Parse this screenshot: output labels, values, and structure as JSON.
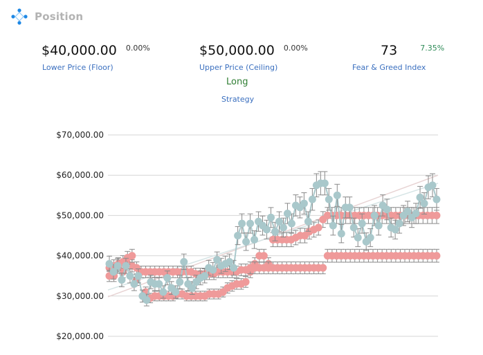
{
  "header": {
    "title": "Position",
    "logo_icon": "diamond-dots-icon"
  },
  "stats": {
    "lower": {
      "value": "$40,000.00",
      "change": "0.00%",
      "label": "Lower Price (Floor)"
    },
    "upper": {
      "value": "$50,000.00",
      "change": "0.00%",
      "label": "Upper Price (Ceiling)"
    },
    "fear_greed": {
      "value": "73",
      "change": "7.35%",
      "label": "Fear & Greed Index"
    },
    "strategy": {
      "value": "Long",
      "label": "Strategy"
    }
  },
  "colors": {
    "accent": "#3a6fbf",
    "positive": "#2e8b57",
    "price": "#a9c8cb",
    "bound": "#ef9a9a",
    "error": "#8a8a8a"
  },
  "chart_data": {
    "type": "scatter",
    "y_ticks": [
      "$70,000.00",
      "$60,000.00",
      "$50,000.00",
      "$40,000.00",
      "$30,000.00",
      "$20,000.00"
    ],
    "ylim": [
      20000,
      70000
    ],
    "grid": true,
    "series": [
      {
        "values": [
          37000,
          35000,
          37500,
          36000,
          38000,
          37500,
          34000,
          36000,
          31000,
          29500,
          30000,
          30000,
          30000,
          30000,
          30000,
          30500,
          30500,
          30000,
          30000,
          30000,
          30000,
          30000,
          30500,
          30500,
          30500,
          31000,
          32000,
          32500,
          33000,
          33000,
          33500,
          36000,
          38000,
          40000,
          40000,
          38000,
          44000,
          44000,
          44000,
          44000,
          44000,
          44500,
          45000,
          45000,
          46000,
          46500,
          47000,
          49000,
          50000,
          50000,
          50000,
          50000,
          50000,
          50000,
          50000,
          50000,
          50000,
          50000,
          50000,
          50000,
          50000,
          50000,
          50000,
          50000,
          50000,
          50000,
          50000,
          50000,
          50000,
          50000,
          50000,
          50000,
          50000
        ]
      },
      {
        "values": [
          35000,
          37500,
          38000,
          38500,
          39500,
          40000,
          37000,
          36000,
          36000,
          36000,
          36000,
          36000,
          36000,
          36000,
          36000,
          36000,
          36000,
          36000,
          36000,
          35500,
          35500,
          35500,
          35500,
          35500,
          36000,
          36000,
          36000,
          36000,
          36000,
          36500,
          36500,
          37000,
          37000,
          37000,
          37000,
          37000,
          37000,
          37000,
          37000,
          37000,
          37000,
          37000,
          37000,
          37000,
          37000,
          37000,
          37000,
          37000,
          40000,
          40000,
          40000,
          40000,
          40000,
          40000,
          40000,
          40000,
          40000,
          40000,
          40000,
          40000,
          40000,
          40000,
          40000,
          40000,
          40000,
          40000,
          40000,
          40000,
          40000,
          40000,
          40000,
          40000,
          40000
        ]
      },
      {
        "values": [
          38000,
          36000,
          37500,
          34000,
          37500,
          35000,
          33000,
          35000,
          30000,
          29000,
          33500,
          33000,
          33000,
          31000,
          34500,
          32000,
          31000,
          33500,
          38500,
          33000,
          32000,
          33500,
          34500,
          35000,
          37000,
          36500,
          39000,
          37500,
          38000,
          38500,
          37000,
          45000,
          48000,
          43500,
          48000,
          44000,
          48500,
          47500,
          46500,
          49500,
          46000,
          48500,
          47000,
          50500,
          48000,
          52500,
          52000,
          53000,
          48500,
          54000,
          57500,
          58000,
          58000,
          54000,
          47500,
          55000,
          45500,
          52000,
          52000,
          47000,
          44500,
          48000,
          43500,
          44500,
          50000,
          47500,
          52500,
          51500,
          47000,
          46500,
          48000,
          50000,
          51000,
          49500,
          50500,
          54500,
          53000,
          57000,
          57500,
          54000
        ]
      }
    ]
  }
}
